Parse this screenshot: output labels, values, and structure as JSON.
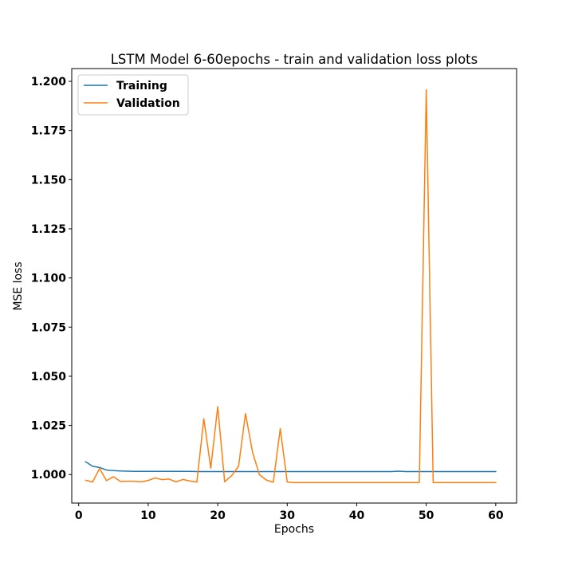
{
  "chart_data": {
    "type": "line",
    "title": "LSTM Model 6-60epochs - train and validation loss plots",
    "xlabel": "Epochs",
    "ylabel": "MSE loss",
    "xlim": [
      -1,
      63
    ],
    "ylim": [
      0.9855,
      1.2065
    ],
    "xticks": [
      0,
      10,
      20,
      30,
      40,
      50,
      60
    ],
    "yticks": [
      1.0,
      1.025,
      1.05,
      1.075,
      1.1,
      1.125,
      1.15,
      1.175,
      1.2
    ],
    "ytick_labels": [
      "1.000",
      "1.025",
      "1.050",
      "1.075",
      "1.100",
      "1.125",
      "1.150",
      "1.175",
      "1.200"
    ],
    "xtick_labels": [
      "0",
      "10",
      "20",
      "30",
      "40",
      "50",
      "60"
    ],
    "grid": false,
    "legend_position": "top-left",
    "x": [
      1,
      2,
      3,
      4,
      5,
      6,
      7,
      8,
      9,
      10,
      11,
      12,
      13,
      14,
      15,
      16,
      17,
      18,
      19,
      20,
      21,
      22,
      23,
      24,
      25,
      26,
      27,
      28,
      29,
      30,
      31,
      32,
      33,
      34,
      35,
      36,
      37,
      38,
      39,
      40,
      41,
      42,
      43,
      44,
      45,
      46,
      47,
      48,
      49,
      50,
      51,
      52,
      53,
      54,
      55,
      56,
      57,
      58,
      59,
      60
    ],
    "series": [
      {
        "name": "Training",
        "color": "#1f77b4",
        "values": [
          1.0065,
          1.0042,
          1.0036,
          1.0023,
          1.002,
          1.0018,
          1.0017,
          1.0016,
          1.0016,
          1.0016,
          1.0016,
          1.0016,
          1.0016,
          1.0016,
          1.0016,
          1.0016,
          1.0015,
          1.0015,
          1.0015,
          1.0015,
          1.0015,
          1.0015,
          1.0015,
          1.0015,
          1.0015,
          1.0015,
          1.0015,
          1.0015,
          1.0015,
          1.0015,
          1.0015,
          1.0015,
          1.0015,
          1.0015,
          1.0015,
          1.0015,
          1.0015,
          1.0015,
          1.0015,
          1.0015,
          1.0015,
          1.0015,
          1.0015,
          1.0015,
          1.0015,
          1.0017,
          1.0015,
          1.0015,
          1.0015,
          1.0015,
          1.0015,
          1.0015,
          1.0015,
          1.0015,
          1.0015,
          1.0015,
          1.0015,
          1.0015,
          1.0015,
          1.0015
        ]
      },
      {
        "name": "Validation",
        "color": "#ff7f0e",
        "values": [
          0.9971,
          0.9962,
          1.0031,
          0.9969,
          0.9989,
          0.9965,
          0.9966,
          0.9966,
          0.9963,
          0.997,
          0.9983,
          0.9974,
          0.9977,
          0.9963,
          0.9975,
          0.9967,
          0.9962,
          1.0284,
          1.0032,
          1.0345,
          0.9963,
          0.9994,
          1.0042,
          1.031,
          1.0115,
          0.9999,
          0.9972,
          0.9961,
          1.0234,
          0.9962,
          0.9959,
          0.9959,
          0.9959,
          0.9959,
          0.9959,
          0.9959,
          0.9959,
          0.9959,
          0.9959,
          0.9959,
          0.9959,
          0.9959,
          0.9959,
          0.9959,
          0.9959,
          0.9959,
          0.9959,
          0.9959,
          0.9959,
          1.1957,
          0.9959,
          0.9959,
          0.9959,
          0.9959,
          0.9959,
          0.9959,
          0.9959,
          0.9959,
          0.9959,
          0.9959
        ]
      }
    ]
  }
}
